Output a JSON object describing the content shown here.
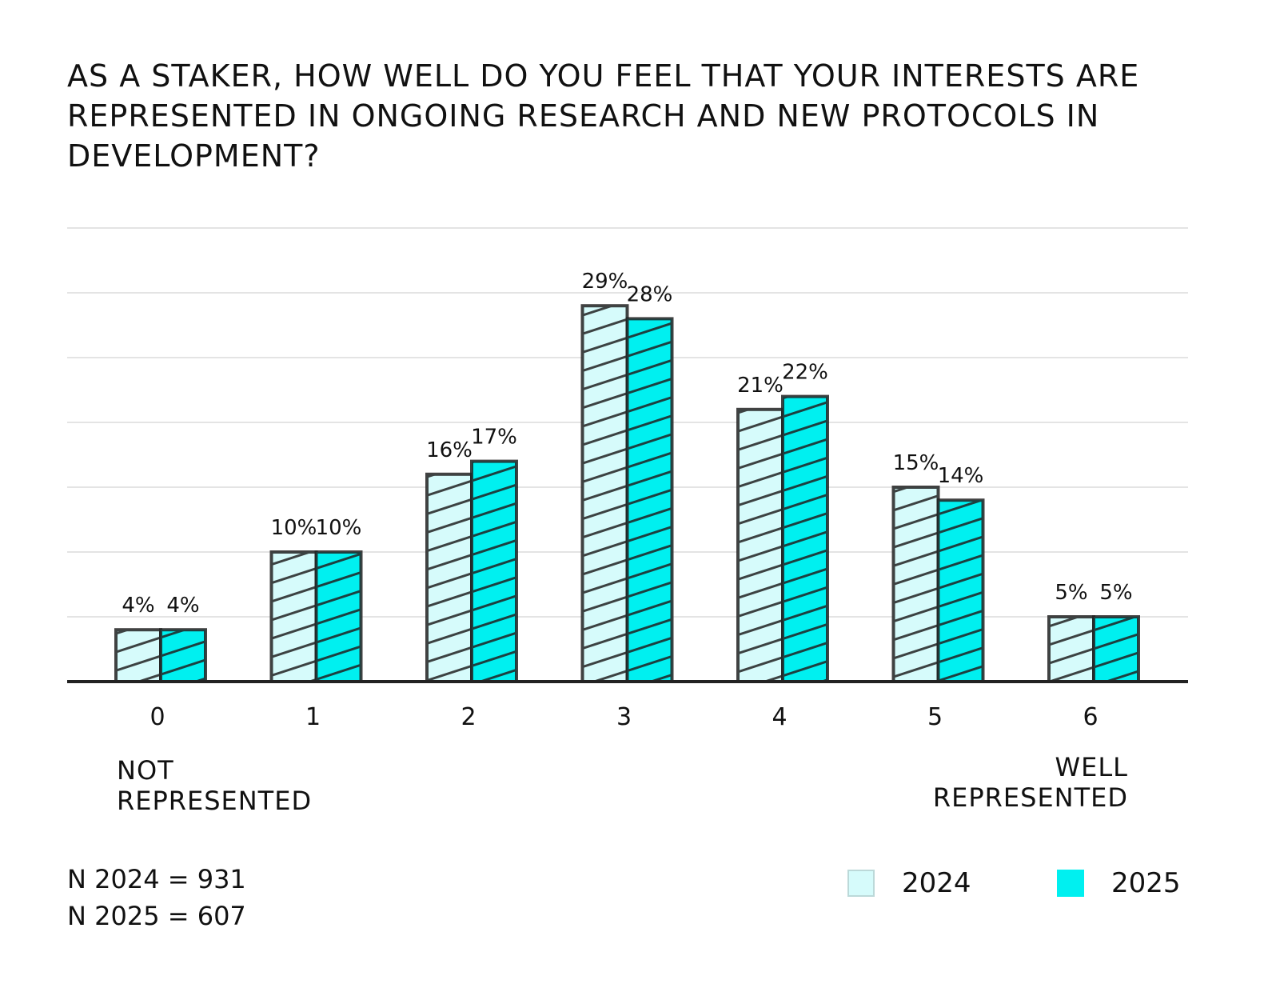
{
  "chart_data": {
    "type": "bar",
    "title": "As a staker, how well do you feel that your interests are represented in ongoing research and new protocols in development?",
    "categories": [
      "0",
      "1",
      "2",
      "3",
      "4",
      "5",
      "6"
    ],
    "series": [
      {
        "name": "2024",
        "color": "#d6fbfb",
        "values": [
          4,
          10,
          16,
          29,
          21,
          15,
          5
        ],
        "labels": [
          "4%",
          "10%",
          "16%",
          "29%",
          "21%",
          "15%",
          "5%"
        ]
      },
      {
        "name": "2025",
        "color": "#00f0f0",
        "values": [
          4,
          10,
          17,
          28,
          22,
          14,
          5
        ],
        "labels": [
          "4%",
          "10%",
          "17%",
          "28%",
          "22%",
          "14%",
          "5%"
        ]
      }
    ],
    "ylim": [
      0,
      35
    ],
    "grid": true,
    "scale_low_label": [
      "NOT",
      "REPRESENTED"
    ],
    "scale_high_label": [
      "WELL",
      "REPRESENTED"
    ],
    "sample_sizes": [
      "N 2024 = 931",
      "N 2025 = 607"
    ],
    "legend": [
      "2024",
      "2025"
    ],
    "legend_position": "bottom-right"
  }
}
